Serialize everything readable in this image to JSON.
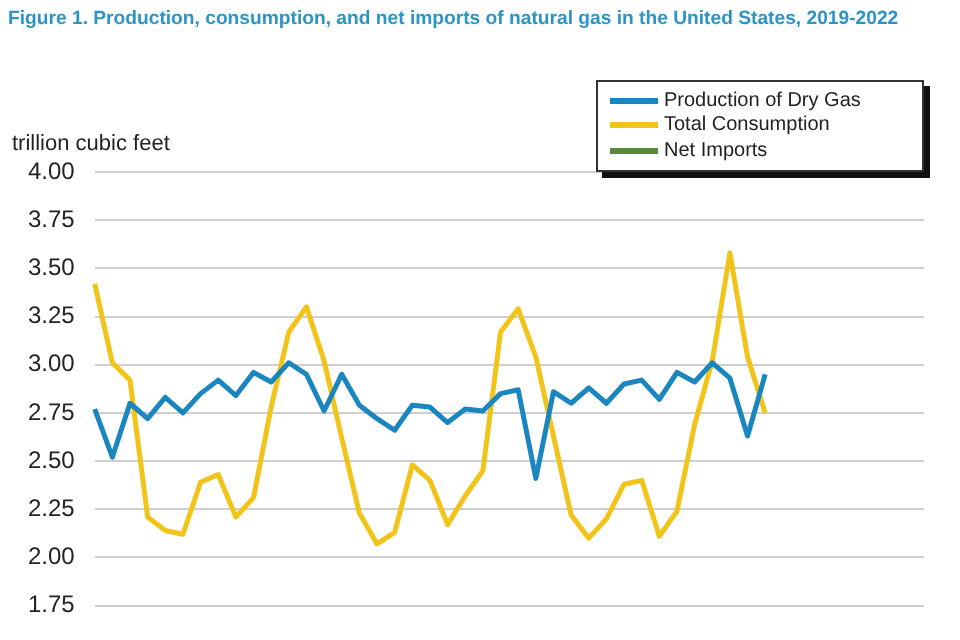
{
  "chart_data": {
    "type": "line",
    "title": "Figure 1.  Production, consumption, and net imports of natural gas in the United States, 2019-2022",
    "ylabel": "trillion cubic feet",
    "categories": [
      null,
      null,
      null,
      null,
      null,
      null,
      null,
      null,
      null,
      null,
      null,
      null,
      null,
      null,
      null,
      null,
      null,
      null,
      null,
      null,
      null,
      null,
      null,
      null,
      null,
      null,
      null,
      null,
      null,
      null,
      null,
      null,
      null,
      null,
      null,
      null,
      null,
      null,
      null,
      null,
      null,
      null,
      null,
      null,
      null,
      null,
      null,
      null
    ],
    "series": [
      {
        "name": "Production of Dry Gas",
        "color": "#1a86c0",
        "values": [
          2.77,
          2.52,
          2.8,
          2.72,
          2.83,
          2.75,
          2.85,
          2.92,
          2.84,
          2.96,
          2.91,
          3.01,
          2.95,
          2.76,
          2.95,
          2.79,
          2.72,
          2.66,
          2.79,
          2.78,
          2.7,
          2.77,
          2.76,
          2.85,
          2.87,
          2.41,
          2.86,
          2.8,
          2.88,
          2.8,
          2.9,
          2.92,
          2.82,
          2.96,
          2.91,
          3.01,
          2.93,
          2.63,
          2.95,
          null,
          null,
          null,
          null,
          null,
          null,
          null,
          null,
          null
        ]
      },
      {
        "name": "Total Consumption",
        "color": "#f2c318",
        "values": [
          3.42,
          3.01,
          2.92,
          2.21,
          2.14,
          2.12,
          2.39,
          2.43,
          2.21,
          2.31,
          2.78,
          3.17,
          3.3,
          3.02,
          2.62,
          2.23,
          2.07,
          2.13,
          2.48,
          2.4,
          2.17,
          2.32,
          2.45,
          3.17,
          3.29,
          3.04,
          2.63,
          2.22,
          2.1,
          2.2,
          2.38,
          2.4,
          2.11,
          2.24,
          2.69,
          3.02,
          3.58,
          3.04,
          2.75,
          null,
          null,
          null,
          null,
          null,
          null,
          null,
          null,
          null
        ]
      },
      {
        "name": "Net Imports",
        "color": "#5a8a3a",
        "values": [
          null,
          null,
          null,
          null,
          null,
          null,
          null,
          null,
          null,
          null,
          null,
          null,
          null,
          null,
          null,
          null,
          null,
          null,
          null,
          null,
          null,
          null,
          null,
          null,
          null,
          null,
          null,
          null,
          null,
          null,
          null,
          null,
          null,
          null,
          null,
          null,
          null,
          null,
          null,
          null,
          null,
          null,
          null,
          null,
          null,
          null,
          null,
          null
        ]
      }
    ],
    "ylim": [
      1.75,
      4.0
    ],
    "yticks": [
      {
        "value": 1.75,
        "label": "1.75"
      },
      {
        "value": 2,
        "label": "2.00"
      },
      {
        "value": 2.25,
        "label": "2.25"
      },
      {
        "value": 2.5,
        "label": "2.50"
      },
      {
        "value": 2.75,
        "label": "2.75"
      },
      {
        "value": 3,
        "label": "3.00"
      },
      {
        "value": 3.25,
        "label": "3.25"
      },
      {
        "value": 3.5,
        "label": "3.50"
      },
      {
        "value": 3.75,
        "label": "3.75"
      },
      {
        "value": 4,
        "label": "4.00"
      }
    ],
    "grid": "y",
    "legend": "top right",
    "tick_labels": "y",
    "marker": "none",
    "line_style": "solid"
  }
}
